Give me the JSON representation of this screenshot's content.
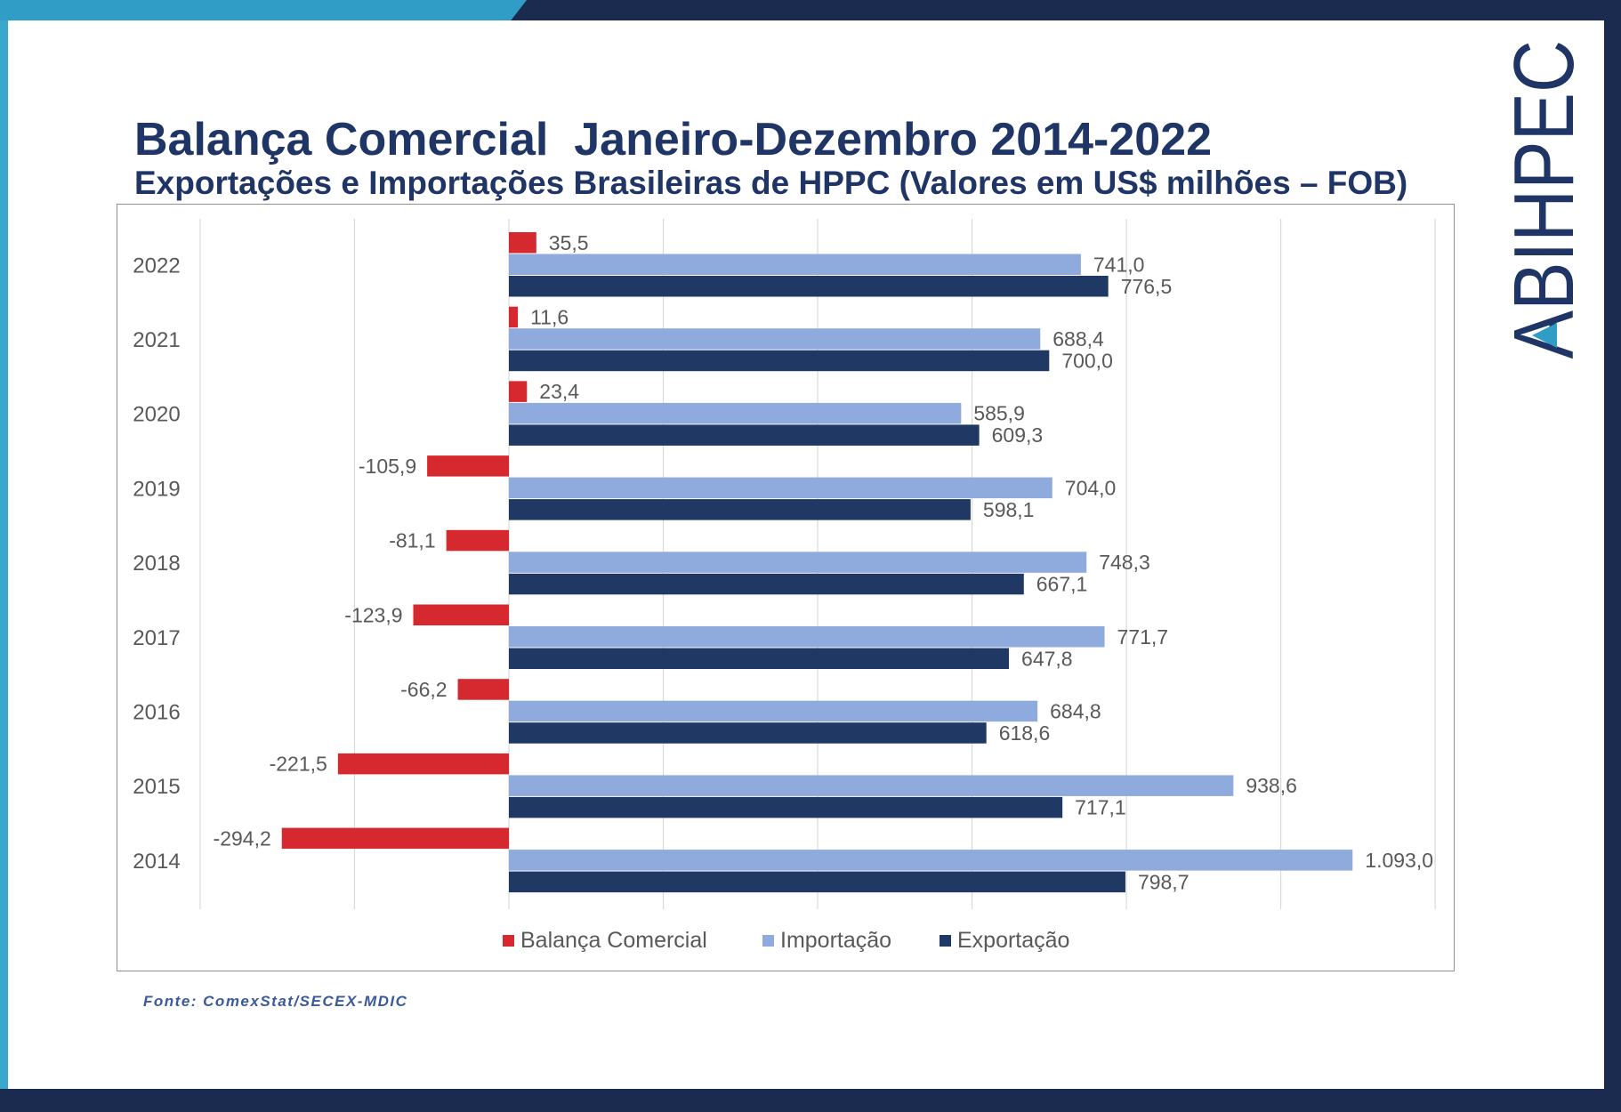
{
  "theme": {
    "frame_navy": "#1b2b50",
    "frame_teal": "#2f9dc6",
    "title_color": "#1f3566",
    "label_color": "#595959"
  },
  "logo": {
    "text": "ABIHPEC"
  },
  "chart_data": {
    "type": "bar",
    "orientation": "horizontal",
    "title": "Balança Comercial  Janeiro-Dezembro 2014-2022",
    "subtitle": "Exportações e Importações Brasileiras de HPPC (Valores em US$ milhões – FOB)",
    "categories": [
      "2022",
      "2021",
      "2020",
      "2019",
      "2018",
      "2017",
      "2016",
      "2015",
      "2014"
    ],
    "series": [
      {
        "name": "Balança Comercial",
        "color": "#d6292f",
        "values": [
          35.5,
          11.6,
          23.4,
          -105.9,
          -81.1,
          -123.9,
          -66.2,
          -221.5,
          -294.2
        ],
        "labels": [
          "35,5",
          "11,6",
          "23,4",
          "-105,9",
          "-81,1",
          "-123,9",
          "-66,2",
          "-221,5",
          "-294,2"
        ]
      },
      {
        "name": "Importação",
        "color": "#8faadc",
        "values": [
          741.0,
          688.4,
          585.9,
          704.0,
          748.3,
          771.7,
          684.8,
          938.6,
          1093.0
        ],
        "labels": [
          "741,0",
          "688,4",
          "585,9",
          "704,0",
          "748,3",
          "771,7",
          "684,8",
          "938,6",
          "1.093,0"
        ]
      },
      {
        "name": "Exportação",
        "color": "#203864",
        "values": [
          776.5,
          700.0,
          609.3,
          598.1,
          667.1,
          647.8,
          618.6,
          717.1,
          798.7
        ],
        "labels": [
          "776,5",
          "700,0",
          "609,3",
          "598,1",
          "667,1",
          "647,8",
          "618,6",
          "717,1",
          "798,7"
        ]
      }
    ],
    "xlim": [
      -400,
      1200
    ],
    "grid": true,
    "legend": "bottom"
  },
  "footer": {
    "source": "Fonte: ComexStat/SECEX-MDIC"
  }
}
